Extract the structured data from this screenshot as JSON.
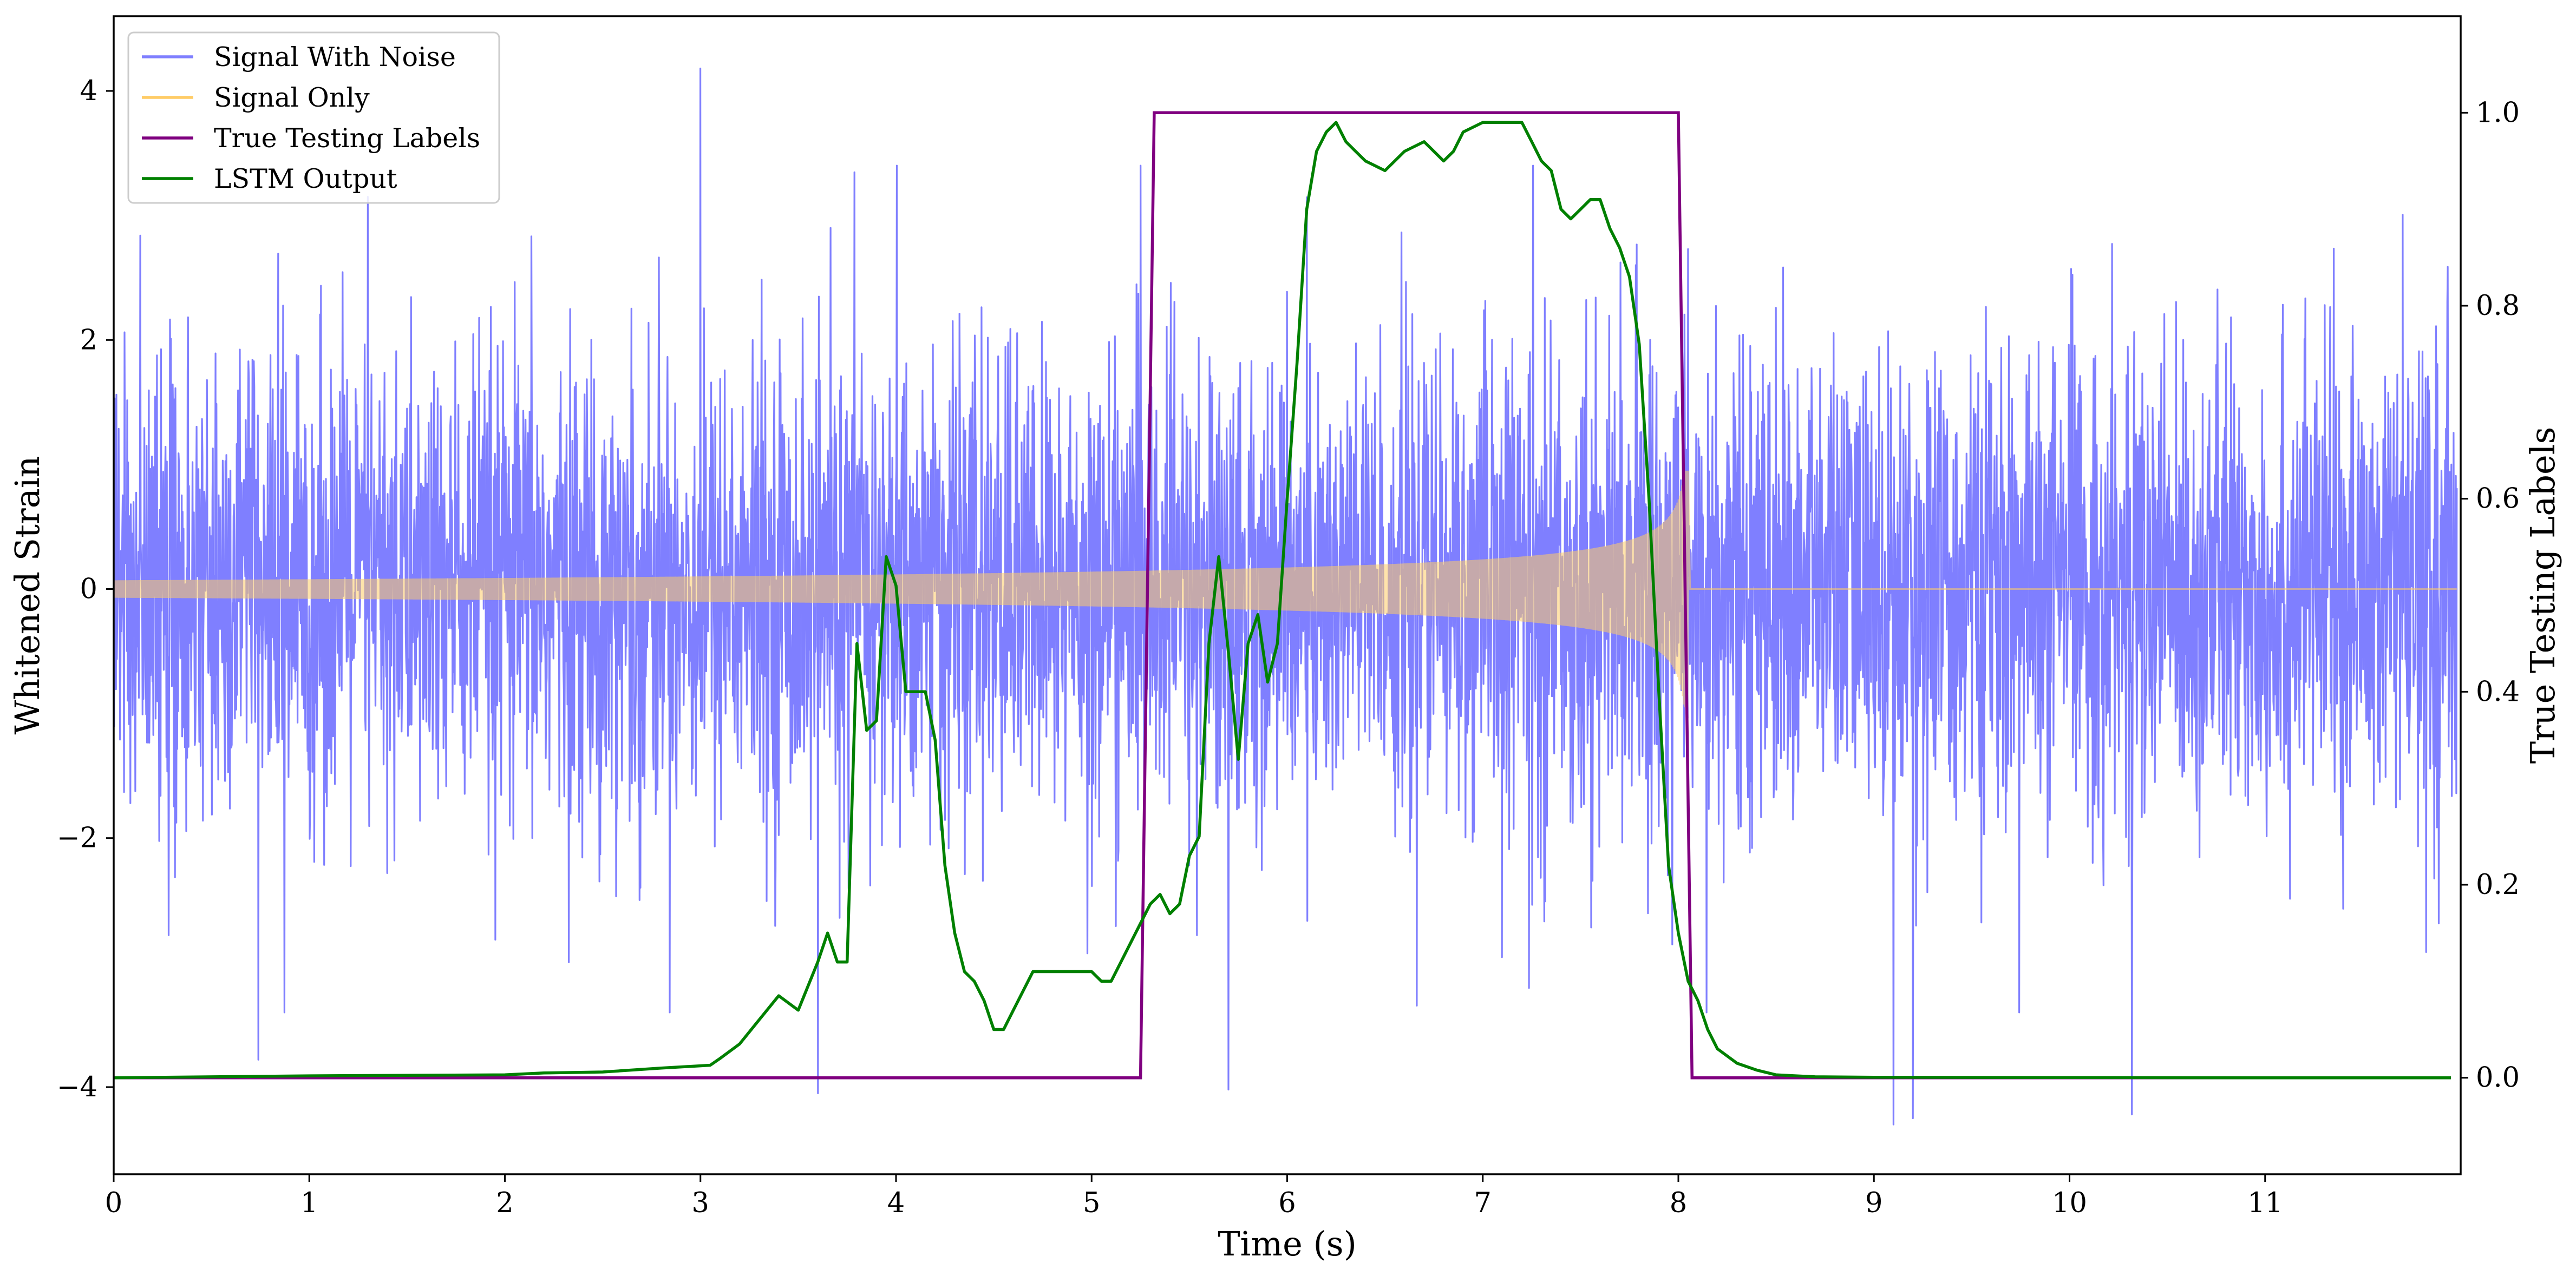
{
  "chart_data": {
    "type": "line",
    "title": "",
    "xlabel": "Time (s)",
    "ylabel": "Whitened Strain",
    "ylabel_right": "True Testing Labels",
    "xlim": [
      0,
      12
    ],
    "ylim": [
      -4.7,
      4.6
    ],
    "ylim_right": [
      -0.1,
      1.1
    ],
    "x_ticks": [
      0,
      1,
      2,
      3,
      4,
      5,
      6,
      7,
      8,
      9,
      10,
      11
    ],
    "x_tick_labels": [
      "0",
      "1",
      "2",
      "3",
      "4",
      "5",
      "6",
      "7",
      "8",
      "9",
      "10",
      "11"
    ],
    "y_ticks": [
      -4,
      -2,
      0,
      2,
      4
    ],
    "y_tick_labels": [
      "−4",
      "−2",
      "0",
      "2",
      "4"
    ],
    "y_ticks_right": [
      0.0,
      0.2,
      0.4,
      0.6,
      0.8,
      1.0
    ],
    "y_tick_labels_right": [
      "0.0",
      "0.2",
      "0.4",
      "0.6",
      "0.8",
      "1.0"
    ],
    "grid": false,
    "legend_placement": "top-left",
    "colors": {
      "signal_with_noise": "#7f7fff",
      "signal_only": "#ffcc66",
      "true_labels": "#800080",
      "lstm_output": "#008000"
    },
    "series": [
      {
        "name": "Signal With Noise",
        "axis": "left",
        "description_values": {
          "typical_amplitude_sigma": 1.0,
          "max": 4.18,
          "min": -4.3,
          "spikes": [
            [
              3.0,
              4.18
            ],
            [
              3.6,
              -4.05
            ],
            [
              5.7,
              -4.02
            ],
            [
              9.1,
              -4.3
            ],
            [
              9.2,
              -4.25
            ],
            [
              10.32,
              -4.22
            ],
            [
              0.74,
              -3.78
            ],
            [
              1.3,
              3.15
            ],
            [
              8.05,
              2.73
            ]
          ]
        }
      },
      {
        "name": "Signal Only",
        "axis": "left",
        "chirp": {
          "start_time": 0.0,
          "merger_time": 8.05,
          "amplitude_start": 0.07,
          "amplitude_merger": 0.95,
          "after_merger": 0.0
        }
      },
      {
        "name": "True Testing Labels",
        "axis": "right",
        "x": [
          0,
          5.25,
          5.32,
          8.0,
          8.07,
          11.95
        ],
        "y": [
          0,
          0,
          1,
          1,
          0,
          0
        ]
      },
      {
        "name": "LSTM Output",
        "axis": "right",
        "x": [
          0,
          1.0,
          2.0,
          2.2,
          2.5,
          2.8,
          3.05,
          3.1,
          3.2,
          3.3,
          3.4,
          3.5,
          3.6,
          3.65,
          3.7,
          3.75,
          3.8,
          3.85,
          3.9,
          3.95,
          4.0,
          4.05,
          4.1,
          4.15,
          4.2,
          4.25,
          4.3,
          4.35,
          4.4,
          4.45,
          4.5,
          4.55,
          4.6,
          4.7,
          4.8,
          4.9,
          5.0,
          5.05,
          5.1,
          5.2,
          5.3,
          5.35,
          5.4,
          5.45,
          5.5,
          5.55,
          5.6,
          5.65,
          5.7,
          5.75,
          5.8,
          5.85,
          5.9,
          5.95,
          6.0,
          6.05,
          6.1,
          6.15,
          6.2,
          6.25,
          6.3,
          6.35,
          6.4,
          6.5,
          6.6,
          6.7,
          6.8,
          6.85,
          6.9,
          7.0,
          7.1,
          7.2,
          7.25,
          7.3,
          7.35,
          7.4,
          7.45,
          7.5,
          7.55,
          7.6,
          7.65,
          7.7,
          7.75,
          7.8,
          7.85,
          7.9,
          7.95,
          8.0,
          8.05,
          8.1,
          8.15,
          8.2,
          8.3,
          8.4,
          8.5,
          8.7,
          9.0,
          10.0,
          11.0,
          11.95
        ],
        "y": [
          0,
          0.002,
          0.003,
          0.005,
          0.006,
          0.01,
          0.013,
          0.02,
          0.035,
          0.06,
          0.085,
          0.07,
          0.12,
          0.15,
          0.12,
          0.12,
          0.45,
          0.36,
          0.37,
          0.54,
          0.51,
          0.4,
          0.4,
          0.4,
          0.35,
          0.22,
          0.15,
          0.11,
          0.1,
          0.08,
          0.05,
          0.05,
          0.07,
          0.11,
          0.11,
          0.11,
          0.11,
          0.1,
          0.1,
          0.14,
          0.18,
          0.19,
          0.17,
          0.18,
          0.23,
          0.25,
          0.45,
          0.54,
          0.44,
          0.33,
          0.45,
          0.48,
          0.41,
          0.45,
          0.6,
          0.74,
          0.9,
          0.96,
          0.98,
          0.99,
          0.97,
          0.96,
          0.95,
          0.94,
          0.96,
          0.97,
          0.95,
          0.96,
          0.98,
          0.99,
          0.99,
          0.99,
          0.97,
          0.95,
          0.94,
          0.9,
          0.89,
          0.9,
          0.91,
          0.91,
          0.88,
          0.86,
          0.83,
          0.76,
          0.6,
          0.4,
          0.22,
          0.15,
          0.1,
          0.08,
          0.05,
          0.03,
          0.015,
          0.008,
          0.003,
          0.001,
          0.0005,
          0.0002,
          0.0,
          0.0
        ]
      }
    ]
  }
}
